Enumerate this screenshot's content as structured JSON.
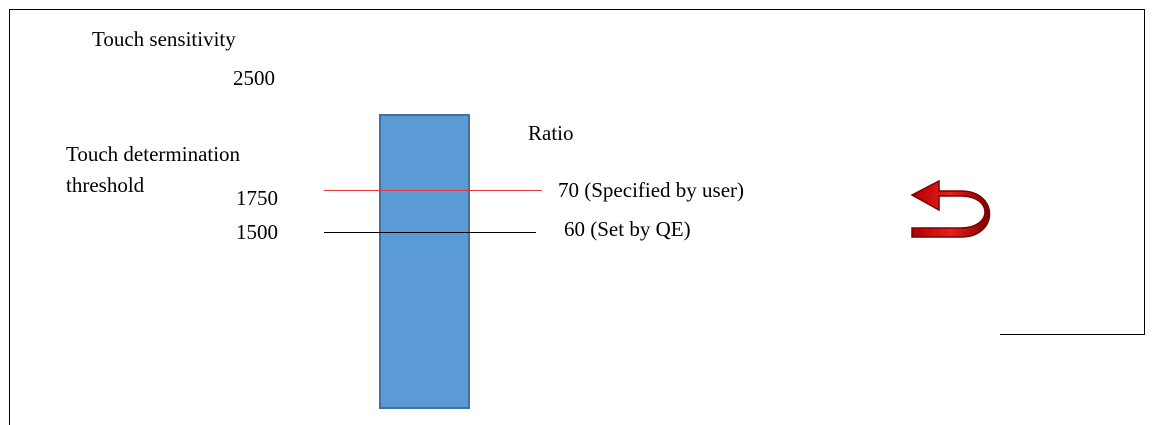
{
  "labels": {
    "touch_sensitivity": "Touch sensitivity",
    "sensitivity_value": "2500",
    "ratio": "Ratio",
    "threshold_line1": "Touch determination",
    "threshold_line2": "threshold",
    "value_user": "1750",
    "value_qe": "1500",
    "ratio_user": "70 (Specified by user)",
    "ratio_qe": "60 (Set by QE)"
  },
  "colors": {
    "bar_fill": "#5b9bd5",
    "bar_stroke": "#41719c",
    "user_threshold_line": "#e53935",
    "qe_threshold_line": "#000000",
    "arrow_fill": "#e8201a",
    "arrow_dark": "#8b0000"
  },
  "icons": {
    "rotate_arrow": "curved-u-turn-arrow-icon"
  }
}
